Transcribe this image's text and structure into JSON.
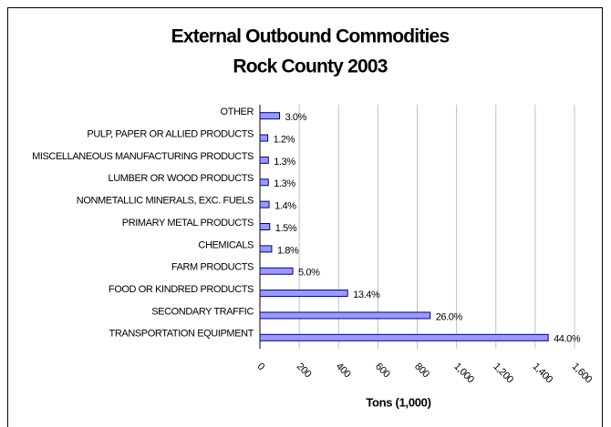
{
  "chart_data": {
    "type": "hbar",
    "title": "External Outbound Commodities",
    "subtitle": "Rock County 2003",
    "x_label": "Tons (1,000)",
    "categories": [
      "OTHER",
      "PULP, PAPER OR ALLIED PRODUCTS",
      "MISCELLANEOUS MANUFACTURING PRODUCTS",
      "LUMBER OR WOOD PRODUCTS",
      "NONMETALLIC MINERALS, EXC. FUELS",
      "PRIMARY METAL PRODUCTS",
      "CHEMICALS",
      "FARM PRODUCTS",
      "FOOD OR KINDRED PRODUCTS",
      "SECONDARY TRAFFIC",
      "TRANSPORTATION EQUIPMENT"
    ],
    "values": [
      100,
      40,
      43,
      43,
      47,
      50,
      60,
      167,
      446,
      866,
      1466
    ],
    "shares": [
      3,
      1.2,
      1.3,
      1.3,
      1.4,
      1.5,
      1.8,
      5,
      13.4,
      26,
      44
    ],
    "share_labels": [
      "3.0%",
      "1.2%",
      "1.3%",
      "1.3%",
      "1.4%",
      "1.5%",
      "1.8%",
      "5.0%",
      "13.4%",
      "26.0%",
      "44.0%"
    ],
    "color": "#9999ff",
    "xlim": [
      0,
      1600
    ],
    "xticks": [
      0,
      200,
      400,
      600,
      800,
      {
        "value": 1000,
        "label": "1,000"
      },
      {
        "value": 1200,
        "label": "1,200"
      },
      {
        "value": 1400,
        "label": "1,400"
      },
      {
        "value": 1600,
        "label": "1,600"
      }
    ],
    "grid": true
  }
}
